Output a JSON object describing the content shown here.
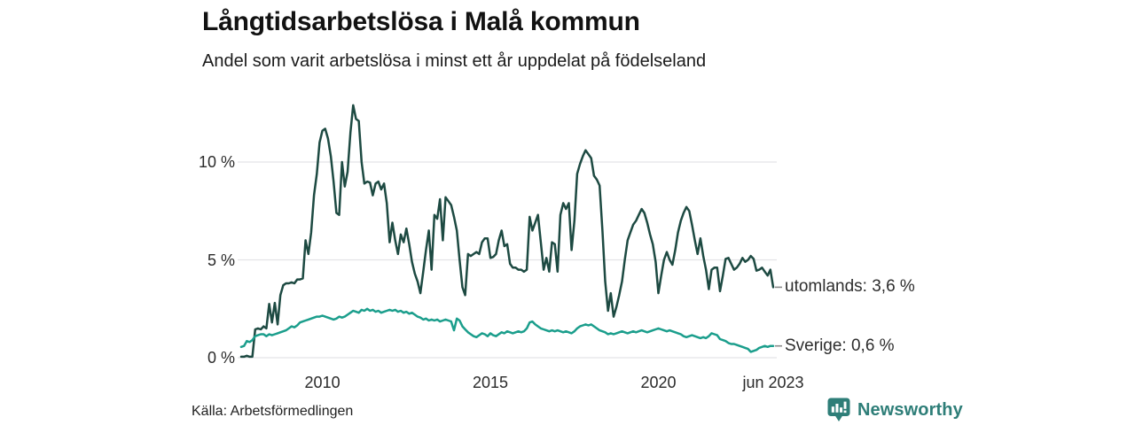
{
  "header": {
    "title": "Långtidsarbetslösa i Malå kommun",
    "subtitle": "Andel som varit arbetslösa i minst ett år uppdelat på födelseland"
  },
  "footer": {
    "source": "Källa: Arbetsförmedlingen",
    "brand": "Newsworthy",
    "brand_color": "#2e7e78",
    "brand_icon": "newsworthy-speech-bubble-bar-chart-icon"
  },
  "colors": {
    "background": "#ffffff",
    "gridline": "#e4e4e7",
    "axis_text": "#2a2a2a",
    "legend_connector": "#8a8a8a"
  },
  "chart_data": {
    "type": "line",
    "title": "Långtidsarbetslösa i Malå kommun",
    "subtitle": "Andel som varit arbetslösa i minst ett år uppdelat på födelseland",
    "x_unit": "month",
    "x_start": "2007-08",
    "x_end": "2023-06",
    "ylim": [
      0,
      13
    ],
    "grid": "horizontal-only",
    "legend_position": "right-end-of-line",
    "y_axis": {
      "ticks": [
        {
          "label": "0 %",
          "value": 0
        },
        {
          "label": "5 %",
          "value": 5
        },
        {
          "label": "10 %",
          "value": 10
        }
      ]
    },
    "x_axis": {
      "ticks": [
        {
          "label": "2010",
          "month_index": 29
        },
        {
          "label": "2015",
          "month_index": 89
        },
        {
          "label": "2020",
          "month_index": 149
        },
        {
          "label": "jun 2023",
          "month_index": 190
        }
      ]
    },
    "series": [
      {
        "name": "utomlands",
        "display_label": "utomlands: 3,6 %",
        "latest_value": 3.6,
        "latest_value_label": "3,6 %",
        "color": "#1d4a42",
        "values": [
          0.05,
          0.05,
          0.1,
          0.05,
          0.05,
          1.45,
          1.5,
          1.45,
          1.6,
          1.5,
          2.75,
          1.8,
          2.8,
          1.7,
          3.2,
          3.7,
          3.8,
          3.8,
          3.85,
          3.8,
          4.0,
          4.0,
          4.05,
          6.0,
          5.3,
          6.4,
          8.3,
          9.4,
          11.0,
          11.6,
          11.7,
          11.2,
          10.3,
          9.0,
          7.4,
          7.3,
          10.0,
          8.75,
          9.5,
          11.5,
          12.9,
          12.2,
          12.1,
          10.0,
          8.9,
          9.0,
          8.95,
          8.3,
          8.9,
          9.0,
          8.6,
          8.9,
          7.9,
          5.9,
          6.9,
          6.0,
          5.3,
          6.3,
          5.9,
          6.6,
          5.8,
          4.9,
          4.3,
          3.9,
          3.3,
          4.4,
          5.5,
          6.5,
          4.5,
          7.3,
          7.1,
          8.1,
          6.0,
          8.2,
          8.0,
          7.8,
          7.2,
          6.5,
          5.0,
          3.6,
          3.2,
          5.3,
          5.2,
          5.3,
          5.4,
          5.3,
          5.9,
          6.1,
          6.1,
          5.1,
          5.15,
          5.3,
          6.0,
          6.5,
          5.7,
          5.8,
          4.8,
          4.6,
          4.6,
          4.5,
          4.5,
          4.4,
          4.5,
          7.2,
          6.5,
          6.9,
          7.3,
          5.9,
          4.5,
          5.1,
          4.4,
          5.9,
          5.8,
          4.4,
          7.3,
          7.9,
          7.6,
          7.9,
          5.5,
          7.0,
          9.4,
          9.9,
          10.3,
          10.6,
          10.4,
          10.2,
          9.3,
          9.1,
          8.8,
          6.5,
          3.9,
          2.4,
          3.3,
          2.1,
          2.6,
          3.2,
          3.9,
          5.0,
          6.0,
          6.4,
          6.8,
          7.0,
          7.3,
          7.6,
          7.4,
          6.9,
          6.3,
          5.8,
          4.9,
          3.3,
          4.2,
          5.0,
          5.4,
          5.0,
          4.75,
          5.5,
          6.4,
          7.0,
          7.4,
          7.7,
          7.5,
          6.8,
          6.0,
          5.3,
          6.1,
          5.2,
          4.5,
          3.5,
          4.5,
          4.6,
          4.6,
          3.4,
          4.2,
          5.05,
          5.1,
          4.8,
          4.5,
          4.6,
          4.8,
          5.1,
          4.9,
          5.0,
          5.2,
          5.05,
          4.45,
          4.5,
          4.6,
          4.4,
          4.2,
          4.5,
          3.6
        ]
      },
      {
        "name": "Sverige",
        "display_label": "Sverige: 0,6 %",
        "latest_value": 0.6,
        "latest_value_label": "0,6 %",
        "color": "#1b9e8c",
        "values": [
          0.55,
          0.6,
          0.85,
          0.8,
          0.9,
          1.1,
          1.15,
          1.2,
          1.2,
          1.1,
          1.2,
          1.15,
          1.2,
          1.25,
          1.3,
          1.35,
          1.4,
          1.5,
          1.6,
          1.55,
          1.65,
          1.8,
          1.85,
          1.9,
          1.95,
          2.0,
          2.05,
          2.1,
          2.1,
          2.15,
          2.1,
          2.05,
          2.0,
          1.95,
          2.0,
          2.1,
          2.05,
          2.1,
          2.2,
          2.3,
          2.4,
          2.35,
          2.3,
          2.45,
          2.4,
          2.5,
          2.4,
          2.45,
          2.35,
          2.4,
          2.3,
          2.35,
          2.4,
          2.45,
          2.4,
          2.45,
          2.35,
          2.4,
          2.3,
          2.35,
          2.25,
          2.3,
          2.2,
          2.1,
          2.05,
          1.95,
          2.0,
          1.9,
          1.95,
          1.9,
          1.95,
          1.85,
          1.9,
          1.95,
          1.9,
          1.85,
          1.4,
          2.0,
          1.9,
          1.6,
          1.45,
          1.3,
          1.2,
          1.1,
          1.05,
          1.15,
          1.25,
          1.2,
          1.1,
          1.25,
          1.15,
          1.1,
          1.2,
          1.3,
          1.25,
          1.35,
          1.3,
          1.25,
          1.3,
          1.35,
          1.3,
          1.35,
          1.5,
          1.8,
          1.85,
          1.7,
          1.6,
          1.5,
          1.45,
          1.4,
          1.35,
          1.4,
          1.35,
          1.4,
          1.35,
          1.3,
          1.35,
          1.3,
          1.25,
          1.35,
          1.5,
          1.6,
          1.65,
          1.7,
          1.65,
          1.7,
          1.6,
          1.5,
          1.4,
          1.35,
          1.3,
          1.2,
          1.25,
          1.2,
          1.25,
          1.3,
          1.35,
          1.3,
          1.25,
          1.3,
          1.35,
          1.3,
          1.35,
          1.4,
          1.35,
          1.3,
          1.35,
          1.4,
          1.45,
          1.5,
          1.45,
          1.4,
          1.35,
          1.4,
          1.35,
          1.3,
          1.25,
          1.2,
          1.1,
          1.05,
          1.1,
          1.15,
          1.1,
          1.05,
          1.0,
          1.05,
          1.0,
          1.1,
          1.25,
          1.2,
          1.15,
          0.95,
          0.9,
          0.85,
          0.75,
          0.7,
          0.7,
          0.65,
          0.6,
          0.55,
          0.5,
          0.45,
          0.3,
          0.35,
          0.4,
          0.5,
          0.55,
          0.6,
          0.55,
          0.6,
          0.6
        ]
      }
    ]
  }
}
